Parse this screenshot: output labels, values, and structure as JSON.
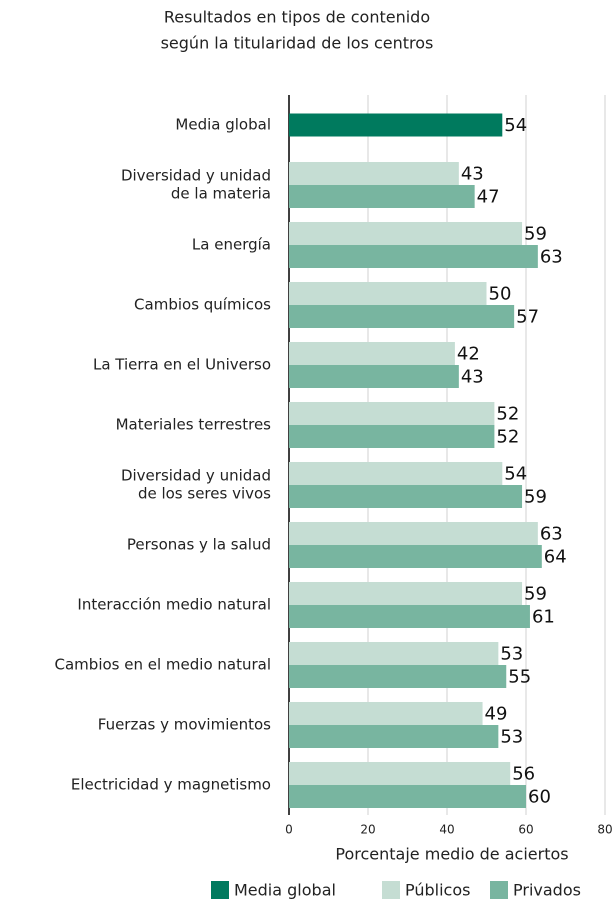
{
  "chart_data": {
    "type": "bar",
    "orientation": "horizontal",
    "title": [
      "Resultados en tipos de contenido",
      "según la titularidad de los centros"
    ],
    "categories": [
      "Media global",
      [
        "Diversidad y unidad",
        "de la materia"
      ],
      "La energía",
      "Cambios químicos",
      "La Tierra en el Universo",
      "Materiales terrestres",
      [
        "Diversidad y unidad",
        "de los seres vivos"
      ],
      "Personas y la salud",
      "Interacción  medio natural",
      "Cambios en el medio natural",
      "Fuerzas y movimientos",
      "Electricidad y magnetismo"
    ],
    "series": [
      {
        "name": "Media global",
        "color": "#007a5e",
        "values": [
          54,
          null,
          null,
          null,
          null,
          null,
          null,
          null,
          null,
          null,
          null,
          null
        ]
      },
      {
        "name": "Públicos",
        "color": "#c5ddd3",
        "values": [
          null,
          43,
          59,
          50,
          42,
          52,
          54,
          63,
          59,
          53,
          49,
          56
        ]
      },
      {
        "name": "Privados",
        "color": "#78b5a0",
        "values": [
          null,
          47,
          63,
          57,
          43,
          52,
          59,
          64,
          61,
          55,
          53,
          60
        ]
      }
    ],
    "xlabel": "Porcentaje medio de aciertos",
    "xlim": [
      0,
      80
    ],
    "xticks": [
      0,
      20,
      40,
      60,
      80
    ],
    "grid": true
  }
}
